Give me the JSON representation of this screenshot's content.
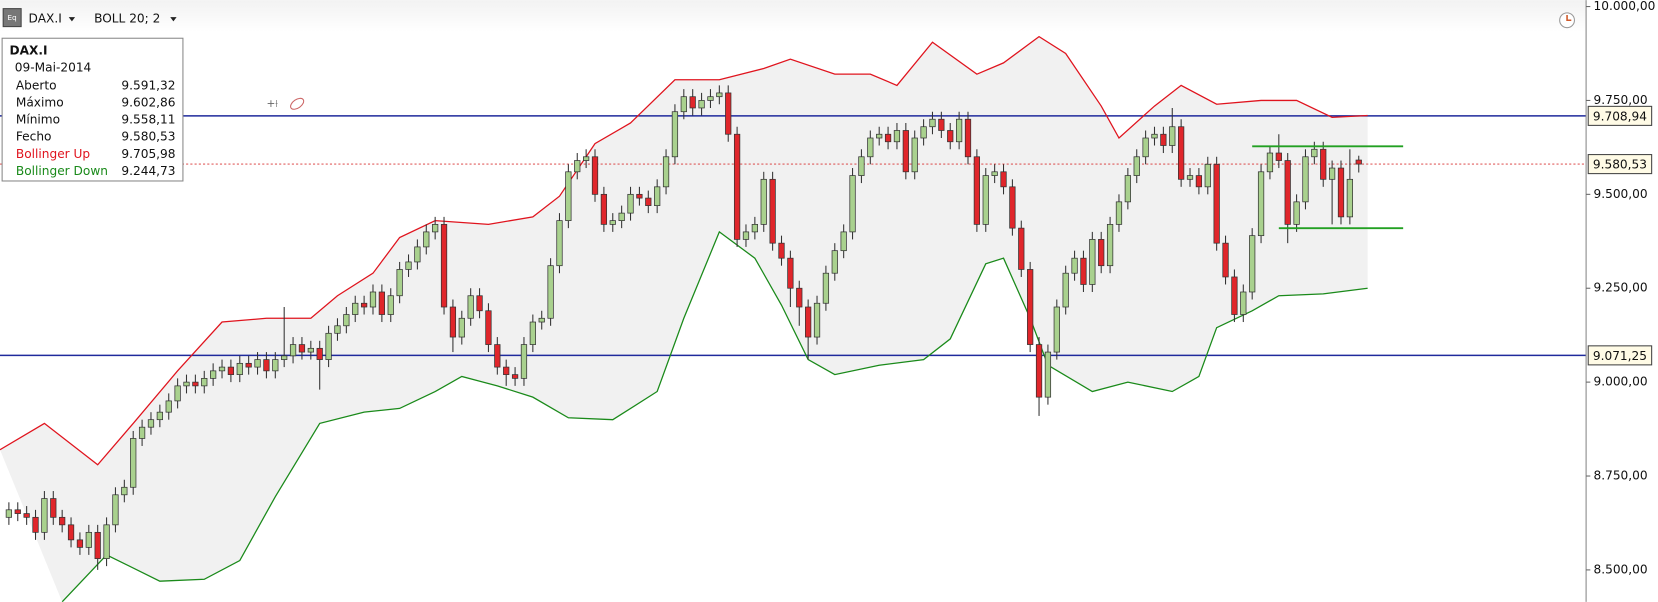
{
  "chart_data": {
    "type": "candlestick",
    "toolbar": {
      "symbol": "DAX.I",
      "indicator": "BOLL 20; 2"
    },
    "info_box": {
      "symbol": "DAX.I",
      "date": "09-Mai-2014",
      "rows": [
        {
          "label": "Aberto",
          "value": "9.591,32",
          "color": "#111111"
        },
        {
          "label": "Máximo",
          "value": "9.602,86",
          "color": "#111111"
        },
        {
          "label": "Mínimo",
          "value": "9.558,11",
          "color": "#111111"
        },
        {
          "label": "Fecho",
          "value": "9.580,53",
          "color": "#111111"
        },
        {
          "label": "Bollinger Up",
          "value": "9.705,98",
          "color": "#e0141e"
        },
        {
          "label": "Bollinger Down",
          "value": "9.244,73",
          "color": "#1a8a1a"
        }
      ]
    },
    "xlim": [
      -1,
      177.6
    ],
    "ylim": [
      8415,
      10017
    ],
    "yticks": [
      {
        "value": 10000,
        "label": "10.000,00"
      },
      {
        "value": 9750,
        "label": "9.750,00"
      },
      {
        "value": 9500,
        "label": "9.500,00"
      },
      {
        "value": 9250,
        "label": "9.250,00"
      },
      {
        "value": 9000,
        "label": "9.000,00"
      },
      {
        "value": 8750,
        "label": "8.750,00"
      },
      {
        "value": 8500,
        "label": "8.500,00"
      }
    ],
    "up_color": "#a9d18e",
    "down_color": "#e0262b",
    "open": [
      8640,
      8660,
      8650,
      8640,
      8600,
      8690,
      8640,
      8620,
      8580,
      8560,
      8600,
      8530,
      8620,
      8700,
      8720,
      8850,
      8880,
      8900,
      8920,
      8950,
      8990,
      9000,
      8990,
      9010,
      9030,
      9040,
      9020,
      9050,
      9040,
      9060,
      9030,
      9060,
      9070,
      9100,
      9080,
      9090,
      9060,
      9130,
      9150,
      9180,
      9210,
      9200,
      9240,
      9180,
      9230,
      9300,
      9320,
      9360,
      9400,
      9420,
      9200,
      9120,
      9170,
      9230,
      9190,
      9100,
      9040,
      9020,
      9010,
      9100,
      9160,
      9170,
      9310,
      9430,
      9560,
      9590,
      9600,
      9500,
      9420,
      9430,
      9450,
      9500,
      9490,
      9470,
      9520,
      9600,
      9720,
      9760,
      9730,
      9750,
      9760,
      9770,
      9660,
      9380,
      9400,
      9420,
      9540,
      9370,
      9330,
      9250,
      9200,
      9120,
      9210,
      9290,
      9350,
      9400,
      9550,
      9600,
      9650,
      9660,
      9640,
      9670,
      9560,
      9650,
      9680,
      9700,
      9670,
      9640,
      9700,
      9600,
      9420,
      9550,
      9560,
      9520,
      9410,
      9300,
      9100,
      8960,
      9080,
      9200,
      9290,
      9330,
      9260,
      9380,
      9310,
      9420,
      9480,
      9550,
      9600,
      9650,
      9660,
      9630,
      9680,
      9540,
      9550,
      9520,
      9580,
      9370,
      9280,
      9180,
      9240,
      9390,
      9560,
      9610,
      9590,
      9420,
      9480,
      9600,
      9620,
      9540,
      9570,
      9440,
      9591.32
    ],
    "high": [
      8680,
      8680,
      8670,
      8660,
      8710,
      8710,
      8660,
      8640,
      8600,
      8620,
      8620,
      8640,
      8720,
      8740,
      8870,
      8900,
      8920,
      8940,
      8970,
      9010,
      9020,
      9020,
      9030,
      9050,
      9060,
      9060,
      9070,
      9070,
      9080,
      9080,
      9080,
      9200,
      9120,
      9120,
      9110,
      9110,
      9150,
      9170,
      9200,
      9230,
      9230,
      9260,
      9260,
      9250,
      9320,
      9340,
      9380,
      9420,
      9440,
      9440,
      9220,
      9190,
      9250,
      9250,
      9210,
      9120,
      9060,
      9040,
      9120,
      9180,
      9190,
      9330,
      9450,
      9580,
      9610,
      9620,
      9620,
      9520,
      9450,
      9470,
      9520,
      9520,
      9510,
      9540,
      9620,
      9740,
      9780,
      9780,
      9770,
      9780,
      9790,
      9790,
      9680,
      9420,
      9440,
      9560,
      9560,
      9390,
      9350,
      9270,
      9220,
      9230,
      9310,
      9370,
      9420,
      9570,
      9620,
      9670,
      9680,
      9680,
      9690,
      9690,
      9670,
      9700,
      9720,
      9720,
      9690,
      9720,
      9720,
      9620,
      9570,
      9580,
      9580,
      9540,
      9430,
      9320,
      9120,
      9100,
      9220,
      9310,
      9350,
      9350,
      9400,
      9400,
      9440,
      9500,
      9570,
      9620,
      9670,
      9680,
      9680,
      9730,
      9700,
      9570,
      9570,
      9600,
      9600,
      9390,
      9300,
      9260,
      9410,
      9580,
      9630,
      9660,
      9610,
      9500,
      9620,
      9640,
      9640,
      9590,
      9590,
      9620,
      9602.86
    ],
    "low": [
      8620,
      8630,
      8620,
      8580,
      8580,
      8620,
      8600,
      8560,
      8540,
      8540,
      8500,
      8510,
      8600,
      8680,
      8700,
      8830,
      8860,
      8880,
      8900,
      8930,
      8970,
      8970,
      8970,
      8990,
      9010,
      9000,
      9000,
      9020,
      9020,
      9010,
      9010,
      9040,
      9050,
      9060,
      9060,
      8980,
      9040,
      9110,
      9130,
      9160,
      9180,
      9180,
      9160,
      9160,
      9210,
      9280,
      9300,
      9340,
      9380,
      9180,
      9080,
      9100,
      9150,
      9170,
      9080,
      9020,
      8990,
      8990,
      8990,
      9080,
      9140,
      9150,
      9290,
      9410,
      9540,
      9570,
      9480,
      9400,
      9400,
      9410,
      9430,
      9470,
      9450,
      9450,
      9500,
      9580,
      9700,
      9710,
      9710,
      9730,
      9740,
      9640,
      9360,
      9360,
      9380,
      9400,
      9350,
      9310,
      9200,
      9150,
      9060,
      9100,
      9190,
      9270,
      9330,
      9380,
      9530,
      9580,
      9630,
      9620,
      9620,
      9540,
      9540,
      9630,
      9660,
      9650,
      9620,
      9620,
      9580,
      9400,
      9400,
      9530,
      9500,
      9390,
      9280,
      9080,
      8910,
      8940,
      9060,
      9180,
      9270,
      9240,
      9240,
      9290,
      9290,
      9400,
      9460,
      9530,
      9580,
      9630,
      9610,
      9610,
      9520,
      9520,
      9500,
      9500,
      9350,
      9260,
      9160,
      9160,
      9220,
      9370,
      9540,
      9570,
      9370,
      9400,
      9460,
      9580,
      9520,
      9420,
      9420,
      9420,
      9558.11
    ],
    "close": [
      8660,
      8650,
      8640,
      8600,
      8690,
      8640,
      8620,
      8580,
      8560,
      8600,
      8530,
      8620,
      8700,
      8720,
      8850,
      8880,
      8900,
      8920,
      8950,
      8990,
      9000,
      8990,
      9010,
      9030,
      9040,
      9020,
      9050,
      9040,
      9060,
      9030,
      9060,
      9070,
      9100,
      9080,
      9090,
      9060,
      9130,
      9150,
      9180,
      9210,
      9200,
      9240,
      9180,
      9230,
      9300,
      9320,
      9360,
      9400,
      9420,
      9200,
      9120,
      9170,
      9230,
      9190,
      9100,
      9040,
      9020,
      9010,
      9100,
      9160,
      9170,
      9310,
      9430,
      9560,
      9590,
      9600,
      9500,
      9420,
      9430,
      9450,
      9500,
      9490,
      9470,
      9520,
      9600,
      9720,
      9760,
      9730,
      9750,
      9760,
      9770,
      9660,
      9380,
      9400,
      9420,
      9540,
      9370,
      9330,
      9250,
      9200,
      9120,
      9210,
      9290,
      9350,
      9400,
      9550,
      9600,
      9650,
      9660,
      9640,
      9670,
      9560,
      9650,
      9680,
      9700,
      9670,
      9640,
      9700,
      9600,
      9420,
      9550,
      9560,
      9520,
      9410,
      9300,
      9100,
      8960,
      9080,
      9200,
      9290,
      9330,
      9260,
      9380,
      9310,
      9420,
      9480,
      9550,
      9600,
      9650,
      9660,
      9630,
      9680,
      9540,
      9550,
      9520,
      9580,
      9370,
      9280,
      9180,
      9240,
      9390,
      9560,
      9610,
      9590,
      9420,
      9480,
      9600,
      9620,
      9540,
      9570,
      9440,
      9540,
      9580.53
    ],
    "bands": [
      {
        "name": "Bollinger Up",
        "color": "#e0141e",
        "x": [
          -1,
          4,
          10,
          14,
          19,
          24,
          29,
          34,
          37,
          41,
          44,
          48,
          54,
          59,
          62,
          66,
          70,
          75,
          80,
          85,
          88,
          93,
          97,
          100,
          104,
          109,
          112,
          116,
          119,
          123,
          125,
          129,
          132,
          136,
          141,
          145,
          149,
          153
        ],
        "values": [
          8820,
          8890,
          8780,
          8890,
          9030,
          9160,
          9170,
          9170,
          9230,
          9290,
          9385,
          9430,
          9420,
          9440,
          9495,
          9635,
          9690,
          9805,
          9805,
          9835,
          9860,
          9820,
          9820,
          9790,
          9905,
          9820,
          9850,
          9920,
          9875,
          9735,
          9650,
          9735,
          9790,
          9740,
          9750,
          9750,
          9705,
          9710
        ]
      },
      {
        "name": "Bollinger Down",
        "color": "#1a8a1a",
        "x": [
          6,
          11,
          17,
          22,
          26,
          30,
          35,
          40,
          44,
          48,
          51,
          55,
          59,
          63,
          68,
          73,
          76,
          80,
          84,
          87,
          90,
          93,
          98,
          103,
          106,
          110,
          112,
          115,
          117,
          122,
          126,
          131,
          134,
          136,
          140,
          143,
          148,
          153
        ],
        "values": [
          8415,
          8540,
          8470,
          8475,
          8525,
          8695,
          8890,
          8920,
          8930,
          8975,
          9015,
          8990,
          8960,
          8905,
          8900,
          8975,
          9170,
          9400,
          9330,
          9205,
          9060,
          9020,
          9045,
          9060,
          9115,
          9315,
          9330,
          9170,
          9045,
          8975,
          9000,
          8975,
          9015,
          9145,
          9190,
          9230,
          9235,
          9250
        ]
      }
    ],
    "fill_color": "#f1f1f1",
    "hlines": [
      {
        "value": 9708.94,
        "label": "9.708,94",
        "color": "#1f2a9c",
        "dashed": false
      },
      {
        "value": 9580.53,
        "label": "9.580,53",
        "color": "#d83030",
        "dashed": true
      },
      {
        "value": 9071.25,
        "label": "9.071,25",
        "color": "#1f2a9c",
        "dashed": false
      }
    ],
    "trendlines": [
      {
        "x": [
          140,
          157
        ],
        "values": [
          9628,
          9628
        ],
        "color": "#22a022"
      },
      {
        "x": [
          143,
          157
        ],
        "values": [
          9410,
          9410
        ],
        "color": "#22a022"
      }
    ]
  }
}
